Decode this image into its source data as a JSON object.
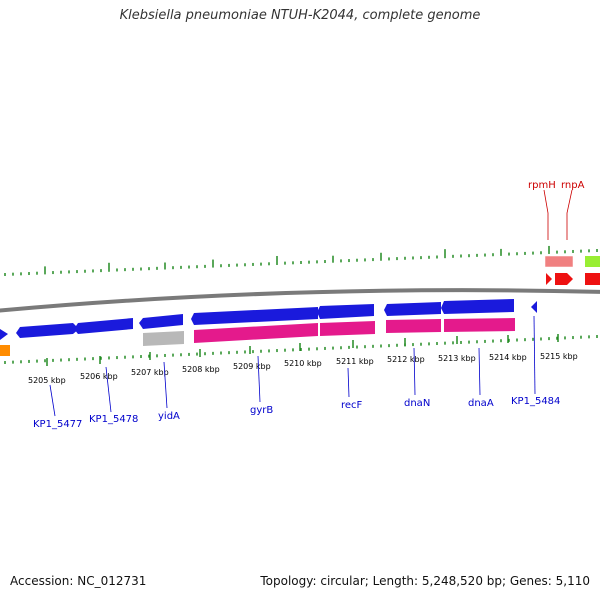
{
  "title": "Klebsiella pneumoniae NTUH-K2044, complete genome",
  "footer": {
    "accession": "Accession: NC_012731",
    "summary": "Topology: circular; Length: 5,248,520 bp; Genes: 5,110"
  },
  "colors": {
    "forward_gene": "#1a1adc",
    "forward_rna": "#e41a8c",
    "grey_feature": "#b8b8b8",
    "orange_feature": "#ff8c00",
    "red_gene": "#ee1111",
    "salmon_feature": "#f08080",
    "green_feature": "#99ee33",
    "backbone": "#7a7a7a",
    "gc_ticks": "#228b22",
    "label_blue": "#0000cc",
    "label_red": "#cc0000"
  },
  "tick_labels": [
    "5205 kbp",
    "5206 kbp",
    "5207 kbp",
    "5208 kbp",
    "5209 kbp",
    "5210 kbp",
    "5211 kbp",
    "5212 kbp",
    "5213 kbp",
    "5214 kbp",
    "5215 kbp"
  ],
  "gene_labels_lower": [
    "KP1_5477",
    "KP1_5478",
    "yidA",
    "gyrB",
    "recF",
    "dnaN",
    "dnaA",
    "KP1_5484"
  ],
  "gene_labels_upper": [
    "rpmH",
    "rnpA"
  ]
}
